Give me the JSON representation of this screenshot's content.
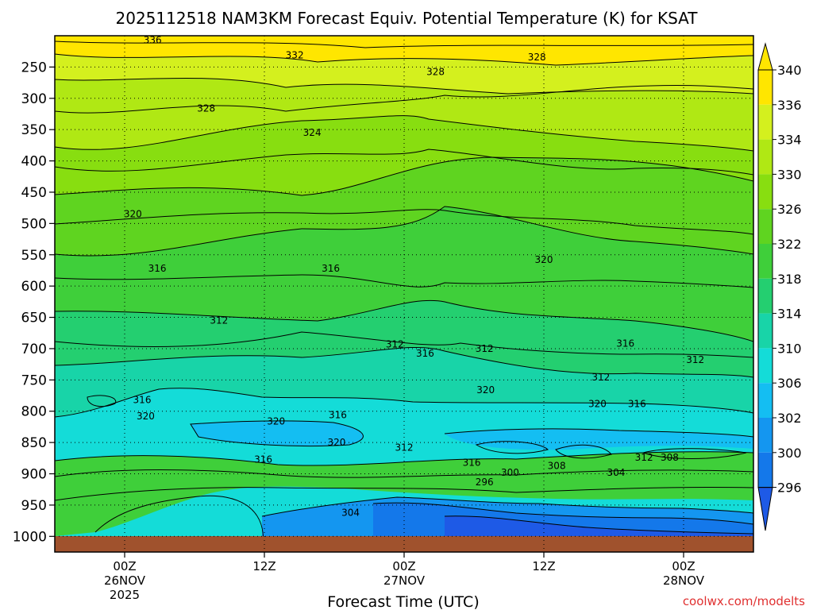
{
  "chart_data": {
    "type": "heatmap",
    "title": "2025112518 NAM3KM Forecast Equiv. Potential Temperature (K) for KSAT",
    "xlabel": "Forecast Time (UTC)",
    "ylabel": "",
    "x_ticks": [
      {
        "top": "00Z",
        "mid": "26NOV",
        "bot": "2025",
        "hours": 6
      },
      {
        "top": "12Z",
        "mid": "",
        "bot": "",
        "hours": 18
      },
      {
        "top": "00Z",
        "mid": "27NOV",
        "bot": "",
        "hours": 30
      },
      {
        "top": "12Z",
        "mid": "",
        "bot": "",
        "hours": 42
      },
      {
        "top": "00Z",
        "mid": "28NOV",
        "bot": "",
        "hours": 54
      }
    ],
    "xlim_hours": [
      0,
      60
    ],
    "y_ticks": [
      250,
      300,
      350,
      400,
      450,
      500,
      550,
      600,
      650,
      700,
      750,
      800,
      850,
      900,
      950,
      1000
    ],
    "ylim_hpa": [
      200,
      1025
    ],
    "surface_pressure_hpa": 990,
    "colorbar": {
      "labels": [
        340,
        336,
        334,
        330,
        326,
        322,
        318,
        314,
        310,
        306,
        302,
        300,
        296
      ],
      "colors": [
        "#ffe600",
        "#d4f01e",
        "#b0e814",
        "#88de10",
        "#5fd420",
        "#3fcf3a",
        "#24cf70",
        "#18d4a8",
        "#14dcd8",
        "#14bef2",
        "#1496f0",
        "#1478ea",
        "#1e5ae6"
      ]
    },
    "contour_labels": [
      {
        "text": "336",
        "hours": 8.4,
        "hpa": 207
      },
      {
        "text": "332",
        "hours": 20.6,
        "hpa": 231
      },
      {
        "text": "328",
        "hours": 41.4,
        "hpa": 234
      },
      {
        "text": "328",
        "hours": 32.7,
        "hpa": 258
      },
      {
        "text": "328",
        "hours": 13.0,
        "hpa": 316
      },
      {
        "text": "324",
        "hours": 22.1,
        "hpa": 355
      },
      {
        "text": "320",
        "hours": 6.7,
        "hpa": 485
      },
      {
        "text": "316",
        "hours": 8.8,
        "hpa": 572
      },
      {
        "text": "316",
        "hours": 23.7,
        "hpa": 572
      },
      {
        "text": "320",
        "hours": 42.0,
        "hpa": 558
      },
      {
        "text": "312",
        "hours": 14.1,
        "hpa": 655
      },
      {
        "text": "312",
        "hours": 29.2,
        "hpa": 693
      },
      {
        "text": "316",
        "hours": 31.8,
        "hpa": 708
      },
      {
        "text": "312",
        "hours": 36.9,
        "hpa": 700
      },
      {
        "text": "316",
        "hours": 49.0,
        "hpa": 692
      },
      {
        "text": "312",
        "hours": 55.0,
        "hpa": 718
      },
      {
        "text": "312",
        "hours": 46.9,
        "hpa": 746
      },
      {
        "text": "320",
        "hours": 37.0,
        "hpa": 766
      },
      {
        "text": "320",
        "hours": 46.6,
        "hpa": 788
      },
      {
        "text": "316",
        "hours": 50.0,
        "hpa": 788
      },
      {
        "text": "316",
        "hours": 7.5,
        "hpa": 782
      },
      {
        "text": "320",
        "hours": 7.8,
        "hpa": 808
      },
      {
        "text": "320",
        "hours": 19.0,
        "hpa": 816
      },
      {
        "text": "316",
        "hours": 24.3,
        "hpa": 806
      },
      {
        "text": "320",
        "hours": 24.2,
        "hpa": 850
      },
      {
        "text": "316",
        "hours": 17.9,
        "hpa": 877
      },
      {
        "text": "312",
        "hours": 30.0,
        "hpa": 858
      },
      {
        "text": "316",
        "hours": 35.8,
        "hpa": 882
      },
      {
        "text": "300",
        "hours": 39.1,
        "hpa": 898
      },
      {
        "text": "308",
        "hours": 43.1,
        "hpa": 887
      },
      {
        "text": "304",
        "hours": 48.2,
        "hpa": 898
      },
      {
        "text": "312",
        "hours": 50.6,
        "hpa": 874
      },
      {
        "text": "308",
        "hours": 52.8,
        "hpa": 874
      },
      {
        "text": "296",
        "hours": 36.9,
        "hpa": 913
      },
      {
        "text": "304",
        "hours": 25.4,
        "hpa": 962
      }
    ],
    "credit": "coolwx.com/modelts"
  }
}
